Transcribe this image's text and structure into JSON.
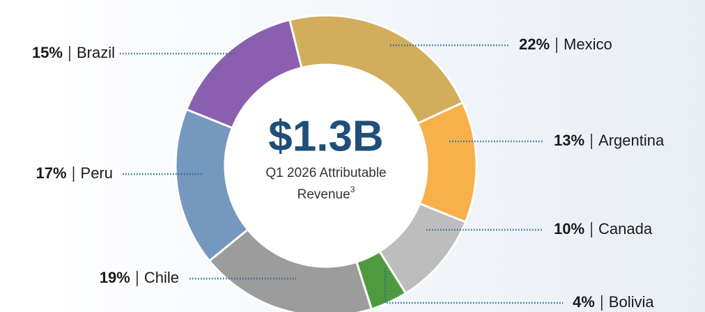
{
  "chart_data": {
    "type": "pie",
    "donut": true,
    "center_label": {
      "value_text": "$1.3B",
      "caption_line1": "Q1 2026 Attributable",
      "caption_line2": "Revenue",
      "footnote": "3"
    },
    "categories": [
      "Mexico",
      "Argentina",
      "Canada",
      "Bolivia",
      "Chile",
      "Peru",
      "Brazil"
    ],
    "values": [
      22,
      13,
      10,
      4,
      19,
      17,
      15
    ],
    "value_labels": [
      "22%",
      "13%",
      "10%",
      "4%",
      "19%",
      "17%",
      "15%"
    ],
    "colors": [
      "#d2ad5c",
      "#f7b04a",
      "#bdbdbd",
      "#4f9a3f",
      "#9c9c9c",
      "#7598bf",
      "#8b5fb0"
    ]
  }
}
